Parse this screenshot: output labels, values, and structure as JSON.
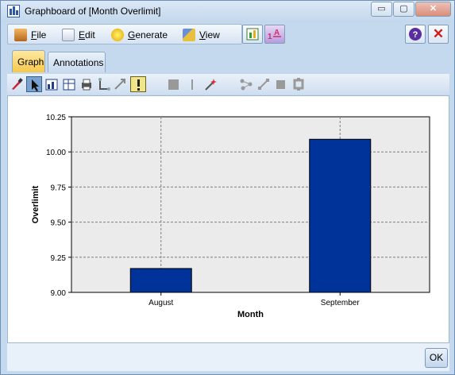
{
  "window": {
    "title": "Graphboard of [Month Overlimit]",
    "minimize_glyph": "▭",
    "maximize_glyph": "▢",
    "close_glyph": "✕"
  },
  "menu": {
    "items": [
      {
        "label": "File",
        "icon": "file-icon"
      },
      {
        "label": "Edit",
        "icon": "edit-icon"
      },
      {
        "label": "Generate",
        "icon": "generate-icon"
      },
      {
        "label": "View",
        "icon": "view-icon"
      }
    ],
    "help_glyph": "?",
    "close_glyph": "✕"
  },
  "tabs": [
    {
      "label": "Graph",
      "active": true
    },
    {
      "label": "Annotations",
      "active": false
    }
  ],
  "footer": {
    "ok_label": "OK"
  },
  "colors": {
    "bar": "#003399",
    "plot_bg": "#ebebeb",
    "grid": "#7f7f7f"
  },
  "chart_data": {
    "type": "bar",
    "categories": [
      "August",
      "September"
    ],
    "values": [
      9.17,
      10.09
    ],
    "xlabel": "Month",
    "ylabel": "Overlimit",
    "ylim": [
      9.0,
      10.25
    ],
    "yticks": [
      "9.00",
      "9.25",
      "9.50",
      "9.75",
      "10.00",
      "10.25"
    ],
    "grid": true
  }
}
